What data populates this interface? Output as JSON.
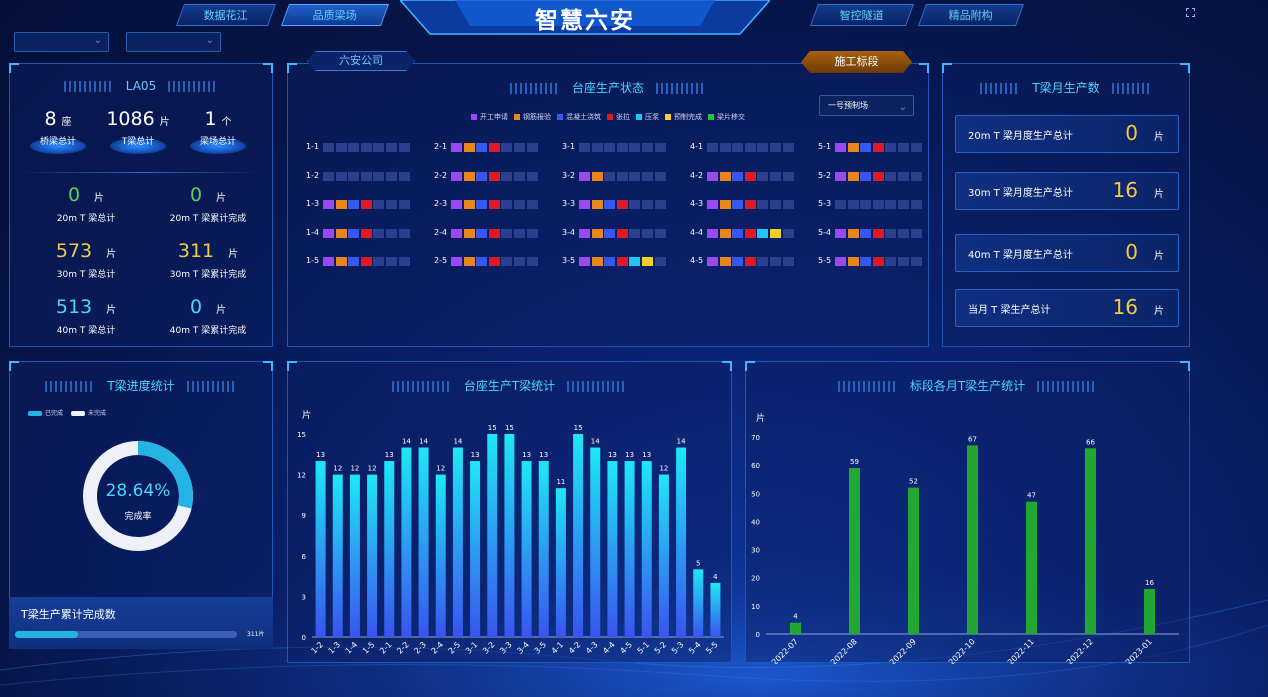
{
  "header": {
    "title": "智慧六安",
    "nav_left": [
      "数据花江",
      "品质梁场"
    ],
    "nav_right": [
      "智控隧道",
      "精品附构"
    ]
  },
  "filters": {
    "select1": "",
    "select2": ""
  },
  "summary": {
    "title": "LA05",
    "tops": [
      {
        "value": "8",
        "unit": "座",
        "label": "桥梁总计"
      },
      {
        "value": "1086",
        "unit": "片",
        "label": "T梁总计"
      },
      {
        "value": "1",
        "unit": "个",
        "label": "梁场总计"
      }
    ],
    "stats": [
      {
        "value": "0",
        "unit": "片",
        "label": "20m T 梁总计",
        "color": "#58d454"
      },
      {
        "value": "0",
        "unit": "片",
        "label": "20m T 梁累计完成",
        "color": "#58d454"
      },
      {
        "value": "573",
        "unit": "片",
        "label": "30m T 梁总计",
        "color": "#f3c94a"
      },
      {
        "value": "311",
        "unit": "片",
        "label": "30m T 梁累计完成",
        "color": "#f3c94a"
      },
      {
        "value": "513",
        "unit": "片",
        "label": "40m T 梁总计",
        "color": "#49d5ff"
      },
      {
        "value": "0",
        "unit": "片",
        "label": "40m T 梁累计完成",
        "color": "#49d5ff"
      }
    ]
  },
  "status": {
    "company_tab": "六安公司",
    "section_tab": "施工标段",
    "title": "台座生产状态",
    "yard_select": "一号预制场",
    "legend": [
      {
        "label": "开工申请",
        "color": "#9a49f2"
      },
      {
        "label": "钢筋报验",
        "color": "#e8861e"
      },
      {
        "label": "混凝土浇筑",
        "color": "#3856f0"
      },
      {
        "label": "张拉",
        "color": "#e01a24"
      },
      {
        "label": "压浆",
        "color": "#1ec6f0"
      },
      {
        "label": "预制完成",
        "color": "#f2d028"
      },
      {
        "label": "梁片移交",
        "color": "#22c43a"
      }
    ],
    "empty_color": "#2c3f8c",
    "rows": [
      {
        "label": "1-1",
        "cells": [
          0,
          0,
          0,
          0,
          0,
          0,
          0
        ]
      },
      {
        "label": "1-2",
        "cells": [
          0,
          0,
          0,
          0,
          0,
          0,
          0
        ]
      },
      {
        "label": "1-3",
        "cells": [
          1,
          2,
          3,
          4,
          0,
          0,
          0
        ]
      },
      {
        "label": "1-4",
        "cells": [
          1,
          2,
          3,
          4,
          0,
          0,
          0
        ]
      },
      {
        "label": "1-5",
        "cells": [
          1,
          2,
          3,
          4,
          0,
          0,
          0
        ]
      },
      {
        "label": "2-1",
        "cells": [
          1,
          2,
          3,
          4,
          0,
          0,
          0
        ]
      },
      {
        "label": "2-2",
        "cells": [
          1,
          2,
          3,
          4,
          0,
          0,
          0
        ]
      },
      {
        "label": "2-3",
        "cells": [
          1,
          2,
          3,
          4,
          0,
          0,
          0
        ]
      },
      {
        "label": "2-4",
        "cells": [
          1,
          2,
          3,
          4,
          0,
          0,
          0
        ]
      },
      {
        "label": "2-5",
        "cells": [
          1,
          2,
          3,
          4,
          0,
          0,
          0
        ]
      },
      {
        "label": "3-1",
        "cells": [
          0,
          0,
          0,
          0,
          0,
          0,
          0
        ]
      },
      {
        "label": "3-2",
        "cells": [
          1,
          2,
          0,
          0,
          0,
          0,
          0
        ]
      },
      {
        "label": "3-3",
        "cells": [
          1,
          2,
          3,
          4,
          0,
          0,
          0
        ]
      },
      {
        "label": "3-4",
        "cells": [
          1,
          2,
          3,
          4,
          0,
          0,
          0
        ]
      },
      {
        "label": "3-5",
        "cells": [
          1,
          2,
          3,
          4,
          5,
          6,
          0
        ]
      },
      {
        "label": "4-1",
        "cells": [
          0,
          0,
          0,
          0,
          0,
          0,
          0
        ]
      },
      {
        "label": "4-2",
        "cells": [
          1,
          2,
          3,
          4,
          0,
          0,
          0
        ]
      },
      {
        "label": "4-3",
        "cells": [
          1,
          2,
          3,
          4,
          0,
          0,
          0
        ]
      },
      {
        "label": "4-4",
        "cells": [
          1,
          2,
          3,
          4,
          5,
          6,
          0
        ]
      },
      {
        "label": "4-5",
        "cells": [
          1,
          2,
          3,
          4,
          0,
          0,
          0
        ]
      },
      {
        "label": "5-1",
        "cells": [
          1,
          2,
          3,
          4,
          0,
          0,
          0
        ]
      },
      {
        "label": "5-2",
        "cells": [
          1,
          2,
          3,
          4,
          0,
          0,
          0
        ]
      },
      {
        "label": "5-3",
        "cells": [
          0,
          0,
          0,
          0,
          0,
          0,
          0
        ]
      },
      {
        "label": "5-4",
        "cells": [
          1,
          2,
          3,
          4,
          0,
          0,
          0
        ]
      },
      {
        "label": "5-5",
        "cells": [
          1,
          2,
          3,
          4,
          0,
          0,
          0
        ]
      }
    ]
  },
  "monthly": {
    "title": "T梁月生产数",
    "cards": [
      {
        "label": "20m T 梁月度生产总计",
        "value": "0",
        "unit": "片"
      },
      {
        "label": "30m T 梁月度生产总计",
        "value": "16",
        "unit": "片"
      },
      {
        "label": "40m T 梁月度生产总计",
        "value": "0",
        "unit": "片"
      },
      {
        "label": "当月 T 梁生产总计",
        "value": "16",
        "unit": "片"
      }
    ]
  },
  "progress": {
    "title": "T梁进度统计",
    "legend_done": "已完成",
    "legend_todo": "未完成",
    "percent_text": "28.64%",
    "percent_value": 28.64,
    "center_label": "完成率",
    "bottom_title": "T梁生产累计完成数",
    "bottom_value": "311片",
    "bottom_fraction": 0.286
  },
  "chart_data": [
    {
      "type": "bar",
      "title": "台座生产T梁统计",
      "ylabel": "片",
      "ylim": [
        0,
        15
      ],
      "yticks": [
        0,
        3,
        6,
        9,
        12,
        15
      ],
      "categories": [
        "1-2",
        "1-3",
        "1-4",
        "1-5",
        "2-1",
        "2-2",
        "2-3",
        "2-4",
        "2-5",
        "3-1",
        "3-2",
        "3-3",
        "3-4",
        "3-5",
        "4-1",
        "4-2",
        "4-3",
        "4-4",
        "4-5",
        "5-1",
        "5-2",
        "5-3",
        "5-4",
        "5-5"
      ],
      "values": [
        13,
        12,
        12,
        12,
        13,
        14,
        14,
        12,
        14,
        13,
        15,
        15,
        13,
        13,
        11,
        15,
        14,
        13,
        13,
        13,
        12,
        14,
        5,
        4
      ]
    },
    {
      "type": "bar",
      "title": "标段各月T梁生产统计",
      "ylabel": "片",
      "ylim": [
        0,
        70
      ],
      "yticks": [
        0,
        10,
        20,
        30,
        40,
        50,
        60,
        70
      ],
      "categories": [
        "2022-07",
        "2022-08",
        "2022-09",
        "2022-10",
        "2022-11",
        "2022-12",
        "2023-01"
      ],
      "values": [
        4,
        59,
        52,
        67,
        47,
        66,
        16
      ]
    }
  ]
}
